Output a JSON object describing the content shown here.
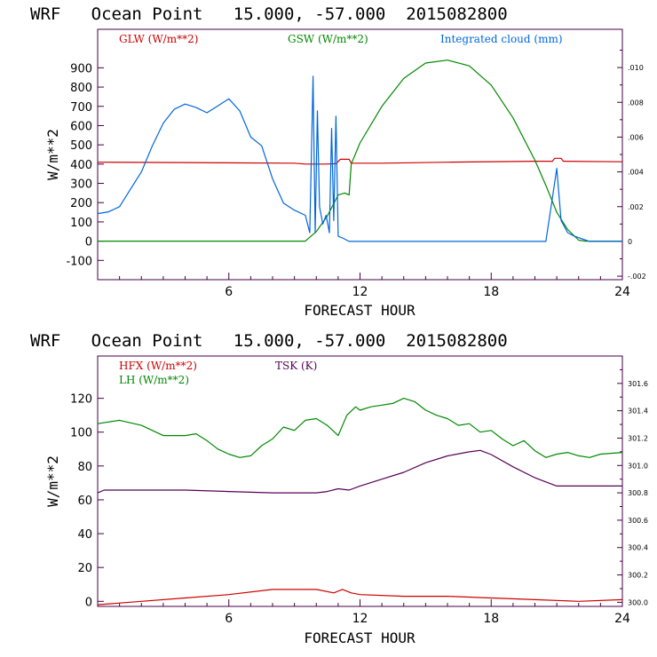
{
  "chart_data": [
    {
      "type": "line",
      "title": "WRF   Ocean Point   15.000, -57.000  2015082800",
      "xlabel": "FORECAST HOUR",
      "ylabel": "W/m**2",
      "xlim": [
        0,
        24
      ],
      "ylim": [
        -200,
        1100
      ],
      "y2lim": [
        -0.0022,
        0.0122
      ],
      "x_ticks": [
        6,
        12,
        18,
        24
      ],
      "y_ticks": [
        -100,
        0,
        100,
        200,
        300,
        400,
        500,
        600,
        700,
        800,
        900
      ],
      "y2_ticks": [
        -0.002,
        0,
        0.002,
        0.004,
        0.006,
        0.008,
        0.01
      ],
      "y2_tick_labels": [
        "-.002",
        "0",
        ".002",
        ".004",
        ".006",
        ".008",
        ".010"
      ],
      "series": [
        {
          "name": "GLW (W/m**2)",
          "color": "#cc0000",
          "axis": "left",
          "points": [
            [
              0,
              410
            ],
            [
              4,
              408
            ],
            [
              9,
              405
            ],
            [
              9.5,
              400
            ],
            [
              10.4,
              400
            ],
            [
              10.9,
              402
            ],
            [
              11.1,
              425
            ],
            [
              11.5,
              425
            ],
            [
              11.6,
              405
            ],
            [
              13,
              405
            ],
            [
              16,
              410
            ],
            [
              20,
              415
            ],
            [
              20.8,
              415
            ],
            [
              20.9,
              430
            ],
            [
              21.2,
              430
            ],
            [
              21.3,
              415
            ],
            [
              24,
              412
            ]
          ]
        },
        {
          "name": "GSW (W/m**2)",
          "color": "#008800",
          "axis": "left",
          "points": [
            [
              0,
              0
            ],
            [
              9,
              0
            ],
            [
              9.5,
              0
            ],
            [
              10,
              50
            ],
            [
              10.5,
              130
            ],
            [
              11,
              240
            ],
            [
              11.3,
              250
            ],
            [
              11.5,
              240
            ],
            [
              11.6,
              400
            ],
            [
              12,
              510
            ],
            [
              13,
              700
            ],
            [
              14,
              845
            ],
            [
              15,
              925
            ],
            [
              16,
              940
            ],
            [
              17,
              910
            ],
            [
              18,
              810
            ],
            [
              19,
              640
            ],
            [
              20,
              420
            ],
            [
              20.5,
              290
            ],
            [
              21,
              150
            ],
            [
              21.5,
              60
            ],
            [
              22,
              5
            ],
            [
              22.3,
              0
            ],
            [
              24,
              0
            ]
          ]
        },
        {
          "name": "Integrated cloud (mm)",
          "color": "#0066dd",
          "axis": "right",
          "points": [
            [
              0,
              0.0016
            ],
            [
              0.5,
              0.0017
            ],
            [
              1,
              0.002
            ],
            [
              1.5,
              0.003
            ],
            [
              2,
              0.004
            ],
            [
              2.5,
              0.0055
            ],
            [
              3,
              0.0068
            ],
            [
              3.5,
              0.0076
            ],
            [
              4,
              0.0079
            ],
            [
              4.5,
              0.0077
            ],
            [
              5,
              0.0074
            ],
            [
              5.5,
              0.0078
            ],
            [
              6,
              0.0082
            ],
            [
              6.5,
              0.0075
            ],
            [
              7,
              0.006
            ],
            [
              7.5,
              0.0055
            ],
            [
              8,
              0.0036
            ],
            [
              8.5,
              0.0022
            ],
            [
              9,
              0.0018
            ],
            [
              9.5,
              0.0015
            ],
            [
              9.7,
              0.0005
            ],
            [
              9.85,
              0.0095
            ],
            [
              9.95,
              0.0005
            ],
            [
              10.05,
              0.0075
            ],
            [
              10.15,
              0.002
            ],
            [
              10.3,
              0.001
            ],
            [
              10.45,
              0.0015
            ],
            [
              10.6,
              0.0005
            ],
            [
              10.7,
              0.0065
            ],
            [
              10.8,
              0.0012
            ],
            [
              10.9,
              0.0072
            ],
            [
              11,
              0.0003
            ],
            [
              11.2,
              0.0002
            ],
            [
              11.5,
              0
            ],
            [
              20.5,
              0
            ],
            [
              20.8,
              0.0025
            ],
            [
              21,
              0.0042
            ],
            [
              21.2,
              0.0012
            ],
            [
              21.5,
              0.0005
            ],
            [
              21.8,
              0.0003
            ],
            [
              22.5,
              0
            ],
            [
              24,
              0
            ]
          ]
        }
      ],
      "legend": [
        "GLW (W/m**2)",
        "GSW (W/m**2)",
        "Integrated cloud (mm)"
      ]
    },
    {
      "type": "line",
      "title": "WRF   Ocean Point   15.000, -57.000  2015082800",
      "xlabel": "FORECAST HOUR",
      "ylabel": "W/m**2",
      "xlim": [
        0,
        24
      ],
      "ylim": [
        -3,
        145
      ],
      "y2lim": [
        299.97,
        301.8
      ],
      "x_ticks": [
        6,
        12,
        18,
        24
      ],
      "y_ticks": [
        0,
        20,
        40,
        60,
        80,
        100,
        120
      ],
      "y2_ticks": [
        300.0,
        300.2,
        300.4,
        300.6,
        300.8,
        301.0,
        301.2,
        301.4,
        301.6
      ],
      "y2_tick_labels": [
        "300.0",
        "300.2",
        "300.4",
        "300.6",
        "300.8",
        "301.0",
        "301.2",
        "301.4",
        "301.6"
      ],
      "series": [
        {
          "name": "HFX (W/m**2)",
          "color": "#cc0000",
          "axis": "left",
          "points": [
            [
              0,
              -2
            ],
            [
              2,
              0
            ],
            [
              4,
              2
            ],
            [
              6,
              4
            ],
            [
              8,
              7
            ],
            [
              10,
              7
            ],
            [
              10.8,
              5
            ],
            [
              11.2,
              7
            ],
            [
              11.6,
              5
            ],
            [
              12,
              4
            ],
            [
              14,
              3
            ],
            [
              16,
              3
            ],
            [
              18,
              2
            ],
            [
              20,
              1
            ],
            [
              22,
              0
            ],
            [
              24,
              1
            ]
          ]
        },
        {
          "name": "LH (W/m**2)",
          "color": "#008800",
          "axis": "left",
          "points": [
            [
              0,
              105
            ],
            [
              1,
              107
            ],
            [
              2,
              104
            ],
            [
              3,
              98
            ],
            [
              4,
              98
            ],
            [
              4.5,
              99
            ],
            [
              5,
              95
            ],
            [
              5.5,
              90
            ],
            [
              6,
              87
            ],
            [
              6.5,
              85
            ],
            [
              7,
              86
            ],
            [
              7.5,
              92
            ],
            [
              8,
              96
            ],
            [
              8.5,
              103
            ],
            [
              9,
              101
            ],
            [
              9.5,
              107
            ],
            [
              10,
              108
            ],
            [
              10.5,
              104
            ],
            [
              11,
              98
            ],
            [
              11.4,
              110
            ],
            [
              11.8,
              115
            ],
            [
              12,
              113
            ],
            [
              12.5,
              115
            ],
            [
              13,
              116
            ],
            [
              13.5,
              117
            ],
            [
              14,
              120
            ],
            [
              14.5,
              118
            ],
            [
              15,
              113
            ],
            [
              15.5,
              110
            ],
            [
              16,
              108
            ],
            [
              16.5,
              104
            ],
            [
              17,
              105
            ],
            [
              17.5,
              100
            ],
            [
              18,
              101
            ],
            [
              18.5,
              96
            ],
            [
              19,
              92
            ],
            [
              19.5,
              95
            ],
            [
              20,
              89
            ],
            [
              20.5,
              85
            ],
            [
              21,
              87
            ],
            [
              21.5,
              88
            ],
            [
              22,
              86
            ],
            [
              22.5,
              85
            ],
            [
              23,
              87
            ],
            [
              24,
              88
            ]
          ]
        },
        {
          "name": "TSK (K)",
          "color": "#550055",
          "axis": "right",
          "points": [
            [
              0,
              300.8
            ],
            [
              0.3,
              300.82
            ],
            [
              2,
              300.82
            ],
            [
              4,
              300.82
            ],
            [
              6,
              300.81
            ],
            [
              8,
              300.8
            ],
            [
              10,
              300.8
            ],
            [
              10.5,
              300.81
            ],
            [
              11,
              300.83
            ],
            [
              11.5,
              300.82
            ],
            [
              12,
              300.85
            ],
            [
              13,
              300.9
            ],
            [
              14,
              300.95
            ],
            [
              15,
              301.02
            ],
            [
              16,
              301.07
            ],
            [
              17,
              301.1
            ],
            [
              17.5,
              301.11
            ],
            [
              18,
              301.08
            ],
            [
              19,
              300.99
            ],
            [
              20,
              300.91
            ],
            [
              20.5,
              300.88
            ],
            [
              21,
              300.85
            ],
            [
              24,
              300.85
            ]
          ]
        }
      ],
      "legend": [
        "HFX (W/m**2)",
        "LH (W/m**2)",
        "TSK (K)"
      ]
    }
  ]
}
